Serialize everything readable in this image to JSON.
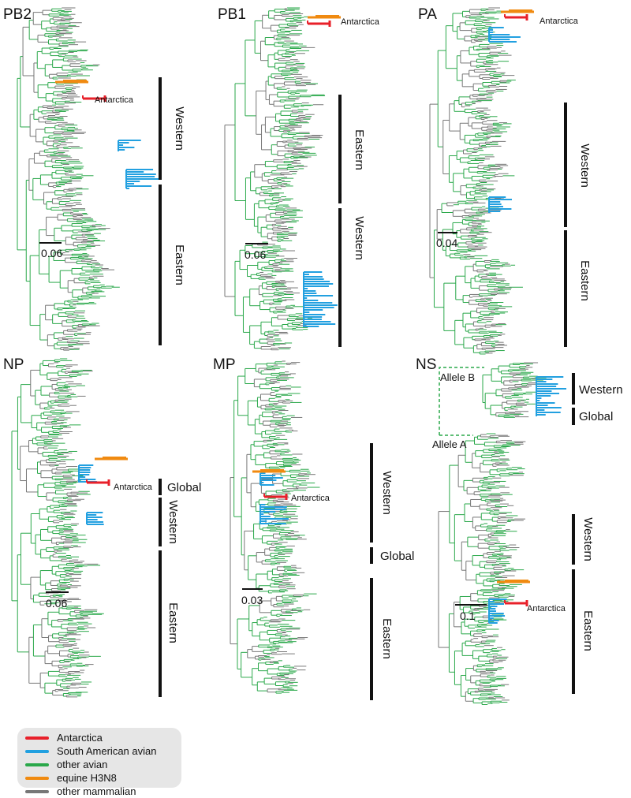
{
  "colors": {
    "antarctica": "#e8202a",
    "south_american_avian": "#22a0e0",
    "other_avian": "#2aa84a",
    "equine_h3n8": "#f08a10",
    "other_mammalian": "#777777",
    "bar": "#111111"
  },
  "panels": [
    {
      "id": "pb2",
      "label": "PB2",
      "scale": "0.06",
      "annotation": "Antarctica",
      "clades": [
        {
          "label": "Western"
        },
        {
          "label": "Eastern"
        }
      ]
    },
    {
      "id": "pb1",
      "label": "PB1",
      "scale": "0.06",
      "annotation": "Antarctica",
      "clades": [
        {
          "label": "Eastern"
        },
        {
          "label": "Western"
        }
      ]
    },
    {
      "id": "pa",
      "label": "PA",
      "scale": "0.04",
      "annotation": "Antarctica",
      "clades": [
        {
          "label": "Western"
        },
        {
          "label": "Eastern"
        }
      ]
    },
    {
      "id": "np",
      "label": "NP",
      "scale": "0.06",
      "annotation": "Antarctica",
      "clades": [
        {
          "label": "Global"
        },
        {
          "label": "Western"
        },
        {
          "label": "Eastern"
        }
      ]
    },
    {
      "id": "mp",
      "label": "MP",
      "scale": "0.03",
      "annotation": "Antarctica",
      "clades": [
        {
          "label": "Western"
        },
        {
          "label": "Global"
        },
        {
          "label": "Eastern"
        }
      ]
    },
    {
      "id": "ns",
      "label": "NS",
      "scale": "0.1",
      "annotation": "Antarctica",
      "alleles": [
        "Allele B",
        "Allele A"
      ],
      "clades": [
        {
          "label": "Western"
        },
        {
          "label": "Global"
        },
        {
          "label": "Western"
        },
        {
          "label": "Eastern"
        }
      ]
    }
  ],
  "legend": {
    "items": [
      {
        "label": "Antarctica",
        "color": "#e8202a"
      },
      {
        "label": "South American avian",
        "color": "#22a0e0"
      },
      {
        "label": "other avian",
        "color": "#2aa84a"
      },
      {
        "label": "equine H3N8",
        "color": "#f08a10"
      },
      {
        "label": "other mammalian",
        "color": "#777777"
      }
    ]
  }
}
